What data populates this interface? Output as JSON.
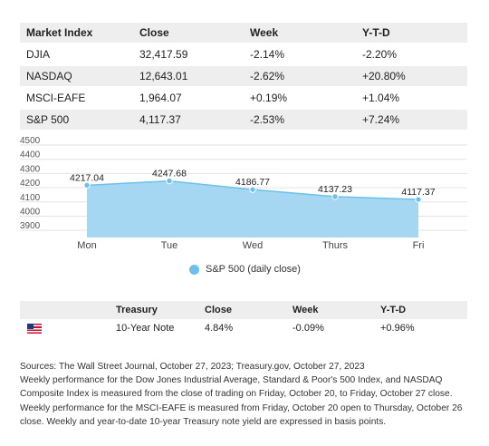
{
  "index_table": {
    "headers": [
      "Market Index",
      "Close",
      "Week",
      "Y-T-D"
    ],
    "rows": [
      [
        "DJIA",
        "32,417.59",
        "-2.14%",
        "-2.20%"
      ],
      [
        "NASDAQ",
        "12,643.01",
        "-2.62%",
        "+20.80%"
      ],
      [
        "MSCI-EAFE",
        "1,964.07",
        "+0.19%",
        "+1.04%"
      ],
      [
        "S&P 500",
        "4,117.37",
        "-2.53%",
        "+7.24%"
      ]
    ]
  },
  "chart_data": {
    "type": "area",
    "categories": [
      "Mon",
      "Tue",
      "Wed",
      "Thurs",
      "Fri"
    ],
    "series": [
      {
        "name": "S&P 500 (daily close)",
        "values": [
          4217.04,
          4247.68,
          4186.77,
          4137.23,
          4117.37
        ],
        "color": "#a6d7f2",
        "line_color": "#6cc0ec"
      }
    ],
    "data_labels": [
      "4217.04",
      "4247.68",
      "4186.77",
      "4137.23",
      "4117.37"
    ],
    "y_ticks": [
      3900,
      4000,
      4100,
      4200,
      4300,
      4400,
      4500
    ],
    "ylim": [
      3850,
      4500
    ],
    "grid": true,
    "legend": "bottom-center",
    "title": "",
    "xlabel": "",
    "ylabel": ""
  },
  "legend_label": "S&P 500 (daily close)",
  "treasury_table": {
    "headers": [
      "",
      "Treasury",
      "Close",
      "Week",
      "Y-T-D"
    ],
    "row": {
      "flag_icon": "us-flag-icon",
      "name": "10-Year Note",
      "close": "4.84%",
      "week": "-0.09%",
      "ytd": "+0.96%"
    }
  },
  "notes": [
    "Sources: The Wall Street Journal, October 27, 2023; Treasury.gov, October 27, 2023",
    "Weekly performance for the Dow Jones Industrial Average, Standard & Poor's 500 Index, and NASDAQ",
    "Composite Index is measured from the close of trading on Friday, October 20, to Friday, October 27 close.",
    "Weekly performance for the MSCI-EAFE is measured from Friday, October 20 open to Thursday, October 26",
    "close. Weekly and year-to-date 10-year Treasury note yield are expressed in basis points."
  ]
}
